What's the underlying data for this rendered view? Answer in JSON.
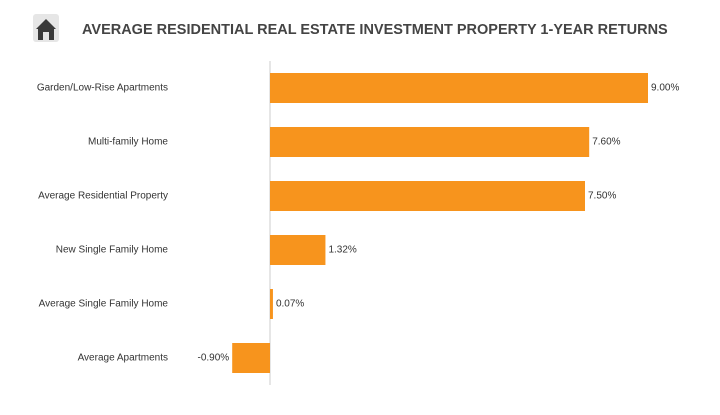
{
  "chart_data": {
    "type": "bar",
    "orientation": "horizontal",
    "title": "AVERAGE RESIDENTIAL REAL ESTATE INVESTMENT PROPERTY 1-YEAR RETURNS",
    "categories": [
      "Garden/Low-Rise Apartments",
      "Multi-family Home",
      "Average Residential Property",
      "New Single Family Home",
      "Average Single Family Home",
      "Average Apartments"
    ],
    "values": [
      9.0,
      7.6,
      7.5,
      1.32,
      0.07,
      -0.9
    ],
    "value_labels": [
      "9.00%",
      "7.60%",
      "7.50%",
      "1.32%",
      "0.07%",
      "-0.90%"
    ],
    "color": "#f7941d"
  }
}
